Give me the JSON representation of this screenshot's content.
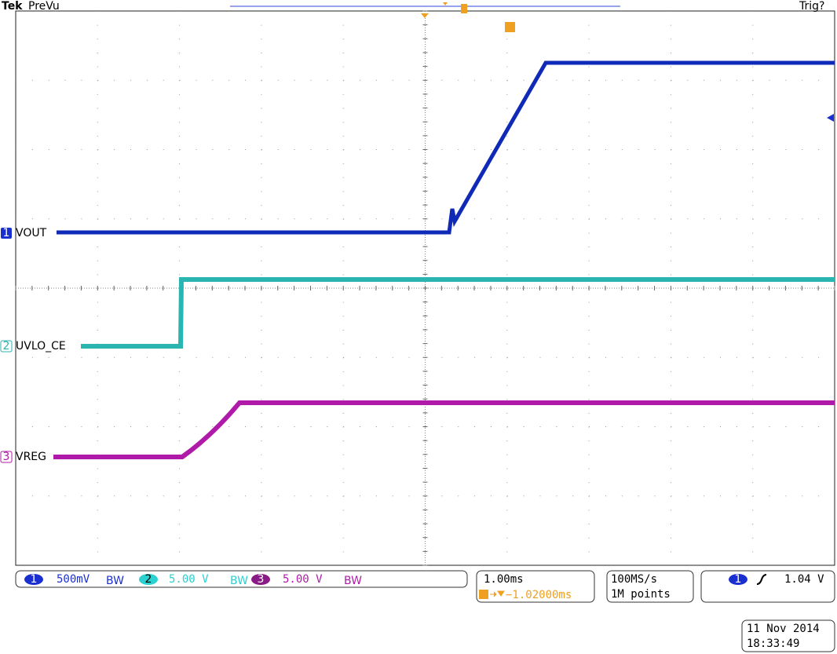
{
  "header": {
    "brand": "Tek",
    "mode": "PreVu",
    "trigger_status": "Trig?"
  },
  "channels": [
    {
      "marker": "1",
      "label": "VOUT",
      "scale": "500mV",
      "bw": "BW"
    },
    {
      "marker": "2",
      "label": "UVLO_CE",
      "scale": "5.00 V",
      "bw": "BW"
    },
    {
      "marker": "3",
      "label": "VREG",
      "scale": "5.00 V",
      "bw": "BW"
    }
  ],
  "timebase": {
    "scale": "1.00ms",
    "position": "−1.02000ms"
  },
  "acquisition": {
    "rate": "100MS/s",
    "length": "1M points"
  },
  "trigger": {
    "source": "1",
    "level": "1.04 V"
  },
  "timestamp": {
    "date": "11 Nov 2014",
    "time": "18:33:49"
  }
}
